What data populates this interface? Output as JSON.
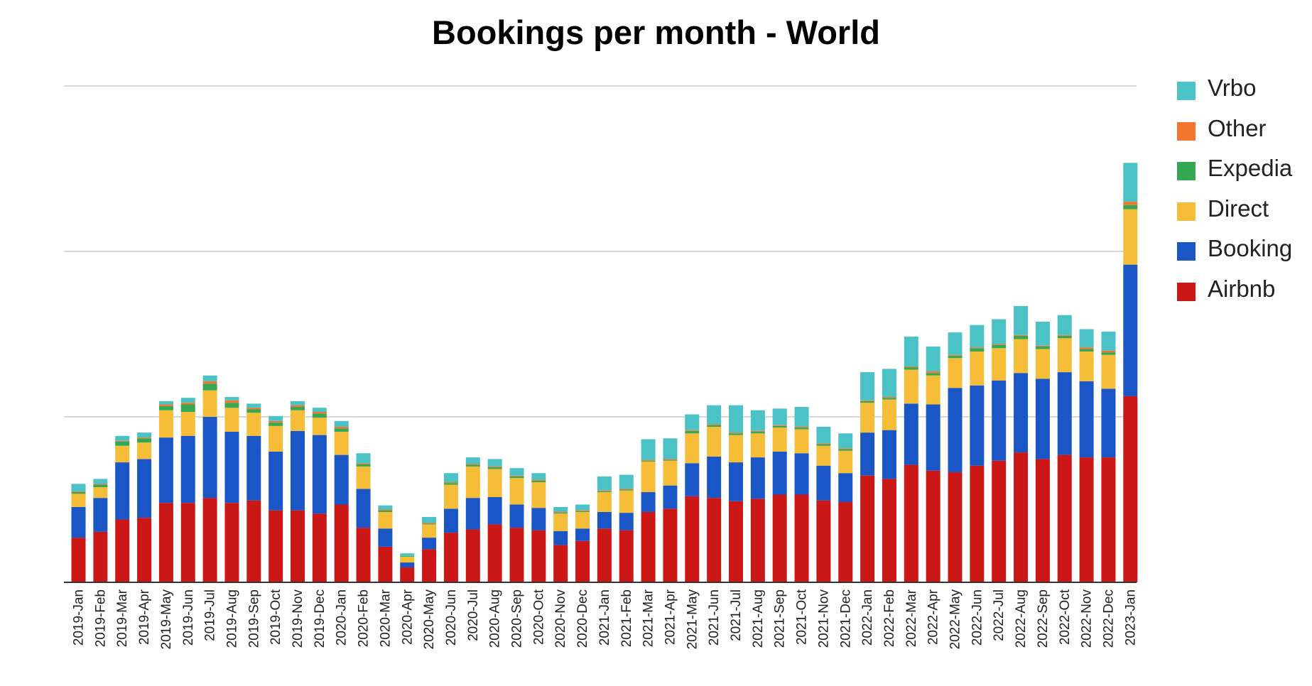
{
  "chart_data": {
    "type": "bar",
    "stacked": true,
    "title": "Bookings per month - World",
    "xlabel": "",
    "ylabel": "",
    "ylim": [
      0,
      6
    ],
    "gridlines": [
      2,
      4,
      6
    ],
    "grid": true,
    "legend_position": "right",
    "categories": [
      "2019-Jan",
      "2019-Feb",
      "2019-Mar",
      "2019-Apr",
      "2019-May",
      "2019-Jun",
      "2019-Jul",
      "2019-Aug",
      "2019-Sep",
      "2019-Oct",
      "2019-Nov",
      "2019-Dec",
      "2020-Jan",
      "2020-Feb",
      "2020-Mar",
      "2020-Apr",
      "2020-May",
      "2020-Jun",
      "2020-Jul",
      "2020-Aug",
      "2020-Sep",
      "2020-Oct",
      "2020-Nov",
      "2020-Dec",
      "2021-Jan",
      "2021-Feb",
      "2021-Mar",
      "2021-Apr",
      "2021-May",
      "2021-Jun",
      "2021-Jul",
      "2021-Aug",
      "2021-Sep",
      "2021-Oct",
      "2021-Nov",
      "2021-Dec",
      "2022-Jan",
      "2022-Feb",
      "2022-Mar",
      "2022-Apr",
      "2022-May",
      "2022-Jun",
      "2022-Jul",
      "2022-Aug",
      "2022-Sep",
      "2022-Oct",
      "2022-Nov",
      "2022-Dec",
      "2023-Jan"
    ],
    "series": [
      {
        "name": "Airbnb",
        "color": "#cc1717",
        "values": [
          0.54,
          0.61,
          0.76,
          0.78,
          0.96,
          0.96,
          1.02,
          0.96,
          0.99,
          0.87,
          0.87,
          0.83,
          0.94,
          0.66,
          0.43,
          0.18,
          0.4,
          0.6,
          0.64,
          0.7,
          0.66,
          0.63,
          0.45,
          0.5,
          0.65,
          0.63,
          0.85,
          0.89,
          1.04,
          1.02,
          0.98,
          1.01,
          1.06,
          1.06,
          0.99,
          0.97,
          1.29,
          1.25,
          1.42,
          1.35,
          1.33,
          1.41,
          1.47,
          1.57,
          1.49,
          1.54,
          1.51,
          1.51,
          2.25
        ]
      },
      {
        "name": "Booking",
        "color": "#1a56c6",
        "values": [
          0.37,
          0.41,
          0.69,
          0.71,
          0.79,
          0.81,
          0.98,
          0.86,
          0.78,
          0.71,
          0.96,
          0.95,
          0.6,
          0.47,
          0.22,
          0.06,
          0.14,
          0.29,
          0.38,
          0.33,
          0.28,
          0.27,
          0.17,
          0.15,
          0.2,
          0.21,
          0.24,
          0.28,
          0.4,
          0.5,
          0.47,
          0.5,
          0.52,
          0.5,
          0.42,
          0.35,
          0.52,
          0.59,
          0.74,
          0.8,
          1.02,
          0.97,
          0.97,
          0.96,
          0.97,
          1.0,
          0.92,
          0.83,
          1.59
        ]
      },
      {
        "name": "Direct",
        "color": "#f6bd39",
        "values": [
          0.16,
          0.13,
          0.2,
          0.2,
          0.33,
          0.29,
          0.32,
          0.29,
          0.28,
          0.31,
          0.25,
          0.21,
          0.28,
          0.27,
          0.2,
          0.07,
          0.16,
          0.29,
          0.38,
          0.34,
          0.32,
          0.31,
          0.21,
          0.2,
          0.24,
          0.27,
          0.37,
          0.3,
          0.36,
          0.36,
          0.33,
          0.29,
          0.29,
          0.29,
          0.24,
          0.27,
          0.36,
          0.37,
          0.41,
          0.35,
          0.36,
          0.41,
          0.39,
          0.41,
          0.36,
          0.41,
          0.36,
          0.41,
          0.67
        ]
      },
      {
        "name": "Expedia",
        "color": "#34a853",
        "values": [
          0.02,
          0.03,
          0.05,
          0.05,
          0.05,
          0.09,
          0.08,
          0.06,
          0.04,
          0.04,
          0.04,
          0.05,
          0.04,
          0.03,
          0.02,
          0.01,
          0.01,
          0.02,
          0.02,
          0.02,
          0.02,
          0.02,
          0.01,
          0.01,
          0.01,
          0.01,
          0.01,
          0.01,
          0.03,
          0.02,
          0.02,
          0.02,
          0.02,
          0.02,
          0.02,
          0.02,
          0.02,
          0.02,
          0.03,
          0.03,
          0.03,
          0.04,
          0.04,
          0.04,
          0.03,
          0.03,
          0.03,
          0.03,
          0.05
        ]
      },
      {
        "name": "Other",
        "color": "#f4752d",
        "values": [
          0.01,
          0.01,
          0.01,
          0.01,
          0.02,
          0.02,
          0.03,
          0.03,
          0.02,
          0.02,
          0.02,
          0.02,
          0.02,
          0.01,
          0.01,
          0.0,
          0.01,
          0.01,
          0.01,
          0.01,
          0.01,
          0.01,
          0.01,
          0.01,
          0.01,
          0.01,
          0.01,
          0.01,
          0.01,
          0.01,
          0.01,
          0.01,
          0.01,
          0.01,
          0.01,
          0.01,
          0.01,
          0.01,
          0.01,
          0.02,
          0.01,
          0.01,
          0.01,
          0.01,
          0.01,
          0.01,
          0.02,
          0.02,
          0.04
        ]
      },
      {
        "name": "Vrbo",
        "color": "#4ac2c6",
        "values": [
          0.09,
          0.06,
          0.06,
          0.06,
          0.04,
          0.06,
          0.07,
          0.04,
          0.05,
          0.06,
          0.05,
          0.05,
          0.07,
          0.12,
          0.05,
          0.03,
          0.07,
          0.11,
          0.08,
          0.09,
          0.09,
          0.08,
          0.06,
          0.07,
          0.17,
          0.17,
          0.25,
          0.25,
          0.19,
          0.23,
          0.33,
          0.25,
          0.2,
          0.24,
          0.2,
          0.18,
          0.34,
          0.34,
          0.36,
          0.3,
          0.27,
          0.27,
          0.3,
          0.35,
          0.29,
          0.24,
          0.22,
          0.23,
          0.47
        ]
      }
    ]
  },
  "legend": {
    "items": [
      {
        "label": "Vrbo",
        "color": "#4ac2c6"
      },
      {
        "label": "Other",
        "color": "#f4752d"
      },
      {
        "label": "Expedia",
        "color": "#34a853"
      },
      {
        "label": "Direct",
        "color": "#f6bd39"
      },
      {
        "label": "Booking",
        "color": "#1a56c6"
      },
      {
        "label": "Airbnb",
        "color": "#cc1717"
      }
    ]
  }
}
